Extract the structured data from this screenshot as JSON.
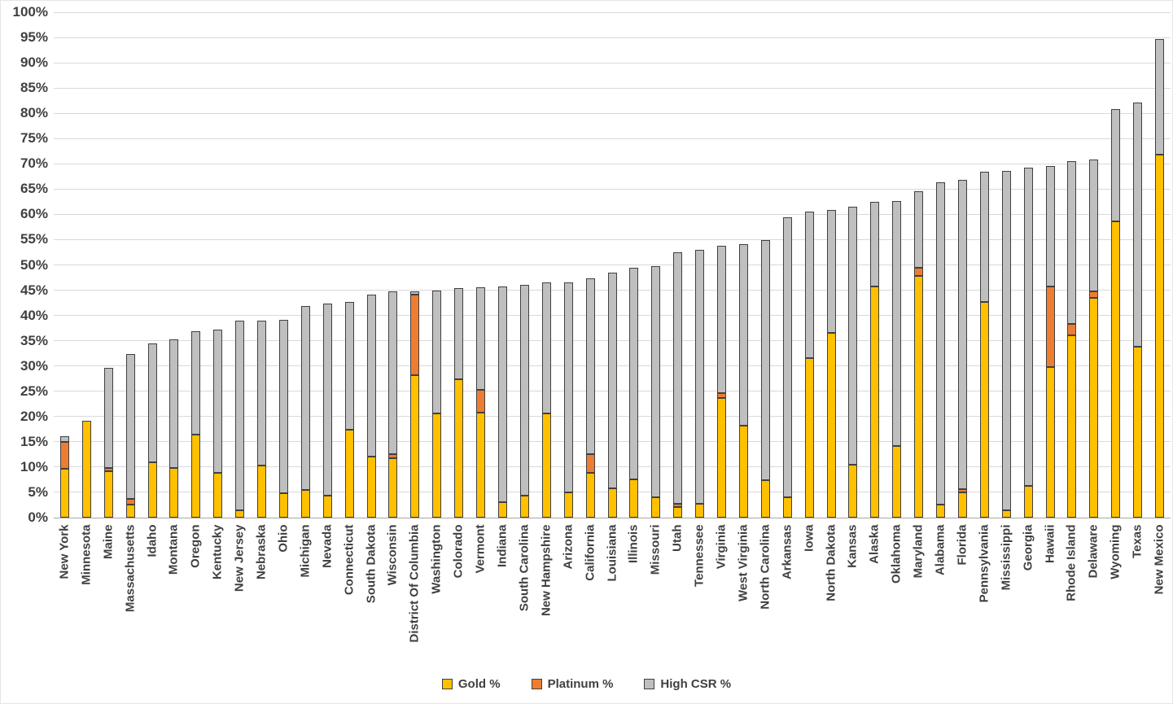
{
  "chart_data": {
    "type": "bar",
    "stacked": true,
    "title": "",
    "xlabel": "",
    "ylabel": "",
    "ylim": [
      0,
      100
    ],
    "ytick_step": 5,
    "ytick_suffix": "%",
    "grid": true,
    "legend_position": "bottom",
    "gridline_color": "#d9d9d9",
    "axis_line_color": "#a6a6a6",
    "axis_text_color": "#404040",
    "bar_border_color": "#404040",
    "categories": [
      "New York",
      "Minnesota",
      "Maine",
      "Massachusetts",
      "Idaho",
      "Montana",
      "Oregon",
      "Kentucky",
      "New Jersey",
      "Nebraska",
      "Ohio",
      "Michigan",
      "Nevada",
      "Connecticut",
      "South Dakota",
      "Wisconsin",
      "District Of Columbia",
      "Washington",
      "Colorado",
      "Vermont",
      "Indiana",
      "South Carolina",
      "New Hampshire",
      "Arizona",
      "California",
      "Louisiana",
      "Illinois",
      "Missouri",
      "Utah",
      "Tennessee",
      "Virginia",
      "West Virginia",
      "North Carolina",
      "Arkansas",
      "Iowa",
      "North Dakota",
      "Kansas",
      "Alaska",
      "Oklahoma",
      "Maryland",
      "Alabama",
      "Florida",
      "Pennsylvania",
      "Mississippi",
      "Georgia",
      "Hawaii",
      "Rhode Island",
      "Delaware",
      "Wyoming",
      "Texas",
      "New Mexico"
    ],
    "series": [
      {
        "name": "Gold %",
        "color": "#FFC000",
        "values": [
          9.6,
          19.1,
          9.1,
          2.6,
          11.0,
          9.8,
          16.5,
          8.8,
          1.5,
          10.3,
          4.8,
          5.5,
          4.4,
          17.4,
          12.0,
          11.8,
          28.2,
          20.6,
          27.4,
          20.8,
          3.0,
          4.3,
          20.6,
          5.0,
          8.8,
          5.8,
          7.5,
          4.0,
          2.1,
          2.8,
          23.6,
          18.2,
          7.4,
          4.0,
          31.6,
          36.6,
          10.5,
          45.7,
          14.1,
          47.8,
          2.6,
          5.0,
          42.6,
          1.5,
          6.2,
          29.8,
          36.0,
          43.5,
          58.6,
          33.8,
          71.8
        ]
      },
      {
        "name": "Platinum %",
        "color": "#ED7D31",
        "values": [
          5.4,
          0,
          0.8,
          1.1,
          0,
          0,
          0,
          0,
          0,
          0,
          0,
          0,
          0,
          0,
          0,
          0.8,
          15.9,
          0,
          0,
          4.5,
          0,
          0,
          0,
          0,
          3.8,
          0,
          0,
          0,
          0.6,
          0,
          1.1,
          0,
          0,
          0,
          0,
          0,
          0,
          0,
          0,
          1.6,
          0,
          0.6,
          0,
          0,
          0,
          15.9,
          2.3,
          1.2,
          0,
          0,
          0
        ]
      },
      {
        "name": "High CSR %",
        "color": "#BFBFBF",
        "values": [
          1.1,
          0,
          19.7,
          28.6,
          23.4,
          25.4,
          20.4,
          28.4,
          37.4,
          28.6,
          34.3,
          36.3,
          38.0,
          25.2,
          32.1,
          32.1,
          0.7,
          24.4,
          18.0,
          20.3,
          42.8,
          41.7,
          26.0,
          41.6,
          34.7,
          42.7,
          41.9,
          45.8,
          49.8,
          50.1,
          29.1,
          35.9,
          47.5,
          55.5,
          29.0,
          24.2,
          51.0,
          16.8,
          48.6,
          15.1,
          63.7,
          61.3,
          25.8,
          67.1,
          63.0,
          23.9,
          32.2,
          26.2,
          22.2,
          48.4,
          22.9
        ]
      }
    ]
  }
}
